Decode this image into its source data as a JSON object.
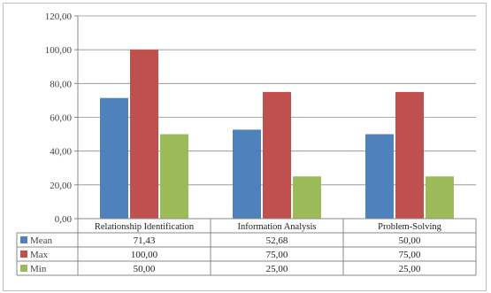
{
  "chart_data": {
    "type": "bar",
    "categories": [
      "Relationship Identification",
      "Information Analysis",
      "Problem-Solving"
    ],
    "series": [
      {
        "name": "Mean",
        "values": [
          71.43,
          52.68,
          50.0
        ],
        "labels": [
          "71,43",
          "52,68",
          "50,00"
        ],
        "color": "#4f81bd"
      },
      {
        "name": "Max",
        "values": [
          100.0,
          75.0,
          75.0
        ],
        "labels": [
          "100,00",
          "75,00",
          "75,00"
        ],
        "color": "#c0504d"
      },
      {
        "name": "Min",
        "values": [
          50.0,
          25.0,
          25.0
        ],
        "labels": [
          "50,00",
          "25,00",
          "25,00"
        ],
        "color": "#9bbb59"
      }
    ],
    "ylim": [
      0,
      120
    ],
    "yticks": [
      "0,00",
      "20,00",
      "40,00",
      "60,00",
      "80,00",
      "100,00",
      "120,00"
    ],
    "grid": true,
    "legend": "data-table-left",
    "title": "",
    "xlabel": "",
    "ylabel": ""
  }
}
